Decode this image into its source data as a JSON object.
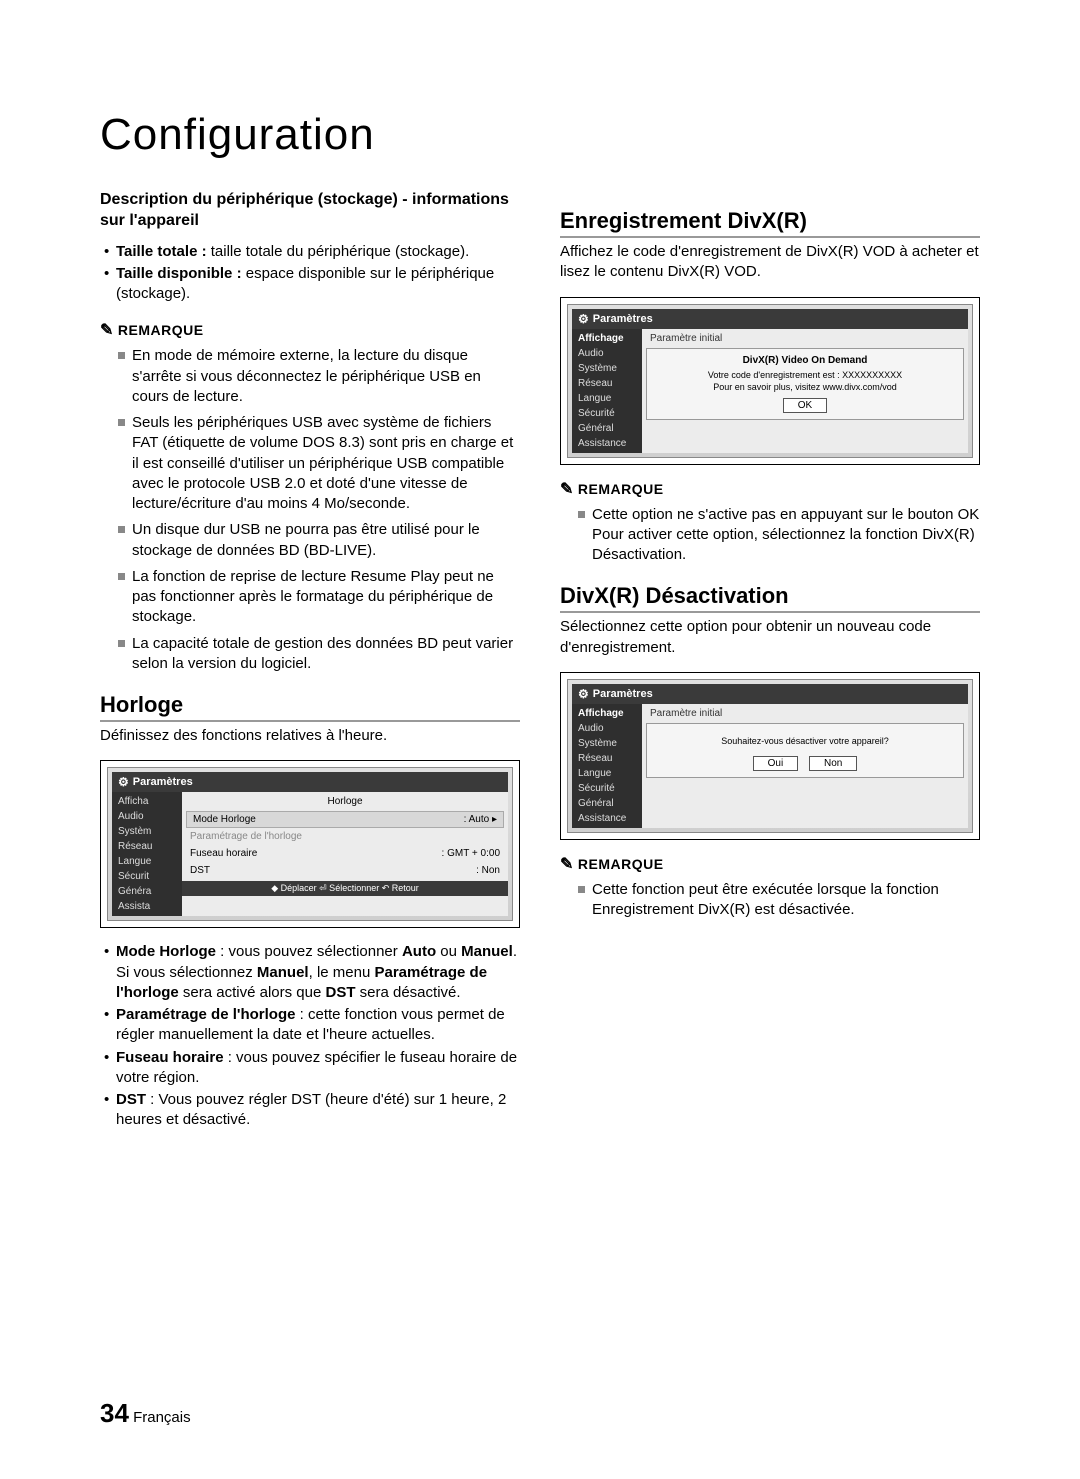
{
  "page_title": "Configuration",
  "left": {
    "desc_heading": "Description du périphérique (stockage) - informations sur l'appareil",
    "desc_bullets": [
      {
        "bold": "Taille totale : ",
        "text": "taille totale du périphérique (stockage)."
      },
      {
        "bold": "Taille disponible : ",
        "text": "espace disponible sur le périphérique (stockage)."
      }
    ],
    "remarque_label": "REMARQUE",
    "remarque_items": [
      "En mode de mémoire externe, la lecture du disque s'arrête si vous déconnectez le périphérique USB en cours de lecture.",
      "Seuls les périphériques USB avec système de fichiers FAT (étiquette de volume DOS 8.3) sont pris en charge et il est conseillé d'utiliser un périphérique USB compatible avec le protocole USB 2.0 et doté d'une vitesse de lecture/écriture d'au moins 4 Mo/seconde.",
      "Un disque dur USB ne pourra pas être utilisé pour le stockage de données BD (BD-LIVE).",
      "La fonction de reprise de lecture Resume Play peut ne pas fonctionner après le formatage du périphérique de stockage.",
      "La capacité totale de gestion des données BD peut varier selon la version du logiciel."
    ],
    "horloge_heading": "Horloge",
    "horloge_intro": "Définissez des fonctions relatives à l'heure.",
    "horloge_bullets": [
      {
        "pre": "Mode Horloge",
        "mid": " : vous pouvez sélectionner ",
        "b2": "Auto",
        "mid2": " ou ",
        "b3": "Manuel",
        "mid3": ". Si vous sélectionnez ",
        "b4": "Manuel",
        "mid4": ", le menu ",
        "b5": "Paramétrage de l'horloge",
        "tail": " sera activé alors que ",
        "b6": "DST",
        "tail2": " sera désactivé."
      },
      {
        "pre": "Paramétrage de l'horloge",
        "tail": " : cette fonction vous permet de régler manuellement la date et l'heure actuelles."
      },
      {
        "pre": "Fuseau horaire",
        "tail": " : vous pouvez spécifier le fuseau horaire de votre région."
      },
      {
        "pre": "DST",
        "tail": " : Vous pouvez régler DST (heure d'été) sur 1 heure, 2 heures et désactivé."
      }
    ]
  },
  "right": {
    "divx_reg_heading": "Enregistrement DivX(R)",
    "divx_reg_text": "Affichez le code d'enregistrement de DivX(R) VOD à acheter et lisez le contenu DivX(R) VOD.",
    "remarque_label": "REMARQUE",
    "divx_reg_remarque": "Cette option ne s'active pas en appuyant sur le bouton OK Pour activer cette option, sélectionnez la fonction DivX(R) Désactivation.",
    "divx_deact_heading": "DivX(R) Désactivation",
    "divx_deact_text": "Sélectionnez cette option pour obtenir un nouveau code d'enregistrement.",
    "divx_deact_remarque": "Cette fonction peut être exécutée lorsque la fonction Enregistrement DivX(R) est désactivée."
  },
  "screenshot_common": {
    "header": "Paramètres",
    "sidebar": [
      "Affichage",
      "Audio",
      "Système",
      "Réseau",
      "Langue",
      "Sécurité",
      "Général",
      "Assistance"
    ]
  },
  "ss_horloge": {
    "title": "Horloge",
    "row1_l": "Mode Horloge",
    "row1_r": ": Auto",
    "row2": "Paramétrage de l'horloge",
    "row3_l": "Fuseau horaire",
    "row3_r": ": GMT + 0:00",
    "row4_l": "DST",
    "row4_r": ": Non",
    "footer": "◆ Déplacer  ⏎ Sélectionner  ↶ Retour",
    "sidebar": [
      "Afficha",
      "Audio",
      "Systèm",
      "Réseau",
      "Langue",
      "Sécurit",
      "Généra",
      "Assista"
    ]
  },
  "ss_divx_reg": {
    "toplabel": "Paramètre initial",
    "dlg_title": "DivX(R) Video On Demand",
    "dlg_line1": "Votre code d'enregistrement est : XXXXXXXXXX",
    "dlg_line2": "Pour en savoir plus, visitez www.divx.com/vod",
    "btn": "OK"
  },
  "ss_divx_deact": {
    "toplabel": "Paramètre initial",
    "dlg_line": "Souhaitez-vous désactiver votre appareil?",
    "btn_yes": "Oui",
    "btn_no": "Non"
  },
  "footer": {
    "num": "34",
    "lang": "Français"
  },
  "colors": {
    "text": "#000000",
    "rule": "#999999",
    "square_bullet": "#888888",
    "ss_dark": "#3a3a3a"
  }
}
